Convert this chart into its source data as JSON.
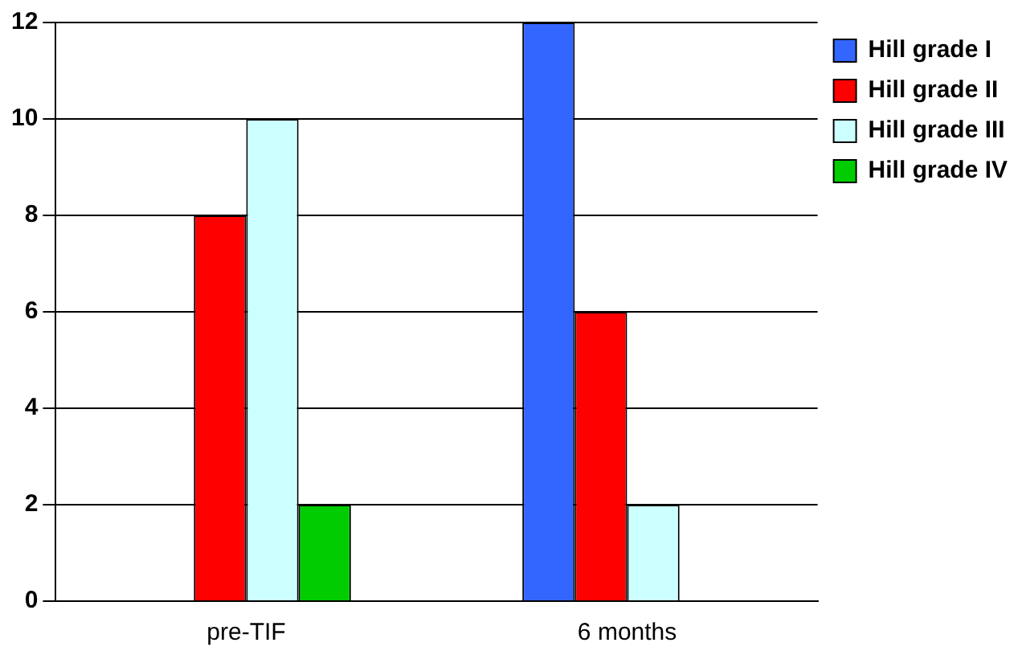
{
  "chart_data": {
    "type": "bar",
    "categories": [
      "pre-TIF",
      "6 months"
    ],
    "series": [
      {
        "name": "Hill grade I",
        "color": "#3366ff",
        "values": [
          0,
          12
        ]
      },
      {
        "name": "Hill grade II",
        "color": "#ff0000",
        "values": [
          8,
          6
        ]
      },
      {
        "name": "Hill grade III",
        "color": "#ccffff",
        "values": [
          10,
          2
        ]
      },
      {
        "name": "Hill grade IV",
        "color": "#00cc00",
        "values": [
          2,
          0
        ]
      }
    ],
    "ylim": [
      0,
      12
    ],
    "yticks": [
      0,
      2,
      4,
      6,
      8,
      10,
      12
    ],
    "grid": "y",
    "legend": "top right"
  }
}
